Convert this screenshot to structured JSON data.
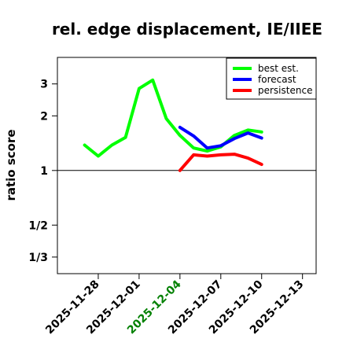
{
  "chart_data": {
    "type": "line",
    "title": "rel. edge displacement, IE/IIEE",
    "ylabel": "ratio score",
    "xlabel": "",
    "y_scale": "log",
    "ylim": [
      0.27,
      4.2
    ],
    "y_ticks": [
      {
        "value": 0.3333,
        "label": "1/3"
      },
      {
        "value": 0.5,
        "label": "1/2"
      },
      {
        "value": 1,
        "label": "1"
      },
      {
        "value": 2,
        "label": "2"
      },
      {
        "value": 3,
        "label": "3"
      }
    ],
    "reference_line": 1,
    "xlim": [
      "2025-11-25",
      "2025-12-14"
    ],
    "x_ticks": [
      {
        "date": "2025-11-28",
        "label": "2025-11-28",
        "color": "#000000"
      },
      {
        "date": "2025-12-01",
        "label": "2025-12-01",
        "color": "#000000"
      },
      {
        "date": "2025-12-04",
        "label": "2025-12-04",
        "color": "#008000"
      },
      {
        "date": "2025-12-07",
        "label": "2025-12-07",
        "color": "#000000"
      },
      {
        "date": "2025-12-10",
        "label": "2025-12-10",
        "color": "#000000"
      },
      {
        "date": "2025-12-13",
        "label": "2025-12-13",
        "color": "#000000"
      }
    ],
    "legend_position": "top-right",
    "series": [
      {
        "name": "best est.",
        "color": "#00ff00",
        "points": [
          [
            "2025-11-27",
            1.38
          ],
          [
            "2025-11-28",
            1.2
          ],
          [
            "2025-11-29",
            1.38
          ],
          [
            "2025-11-30",
            1.52
          ],
          [
            "2025-12-01",
            2.83
          ],
          [
            "2025-12-02",
            3.15
          ],
          [
            "2025-12-03",
            1.93
          ],
          [
            "2025-12-04",
            1.56
          ],
          [
            "2025-12-05",
            1.33
          ],
          [
            "2025-12-06",
            1.28
          ],
          [
            "2025-12-07",
            1.35
          ],
          [
            "2025-12-08",
            1.56
          ],
          [
            "2025-12-09",
            1.67
          ],
          [
            "2025-12-10",
            1.63
          ]
        ]
      },
      {
        "name": "forecast",
        "color": "#0000ff",
        "points": [
          [
            "2025-12-04",
            1.73
          ],
          [
            "2025-12-05",
            1.55
          ],
          [
            "2025-12-06",
            1.33
          ],
          [
            "2025-12-07",
            1.37
          ],
          [
            "2025-12-08",
            1.5
          ],
          [
            "2025-12-09",
            1.61
          ],
          [
            "2025-12-10",
            1.51
          ]
        ]
      },
      {
        "name": "persistence",
        "color": "#ff0000",
        "points": [
          [
            "2025-12-04",
            1.0
          ],
          [
            "2025-12-05",
            1.22
          ],
          [
            "2025-12-06",
            1.2
          ],
          [
            "2025-12-07",
            1.22
          ],
          [
            "2025-12-08",
            1.23
          ],
          [
            "2025-12-09",
            1.17
          ],
          [
            "2025-12-10",
            1.08
          ]
        ]
      }
    ]
  }
}
